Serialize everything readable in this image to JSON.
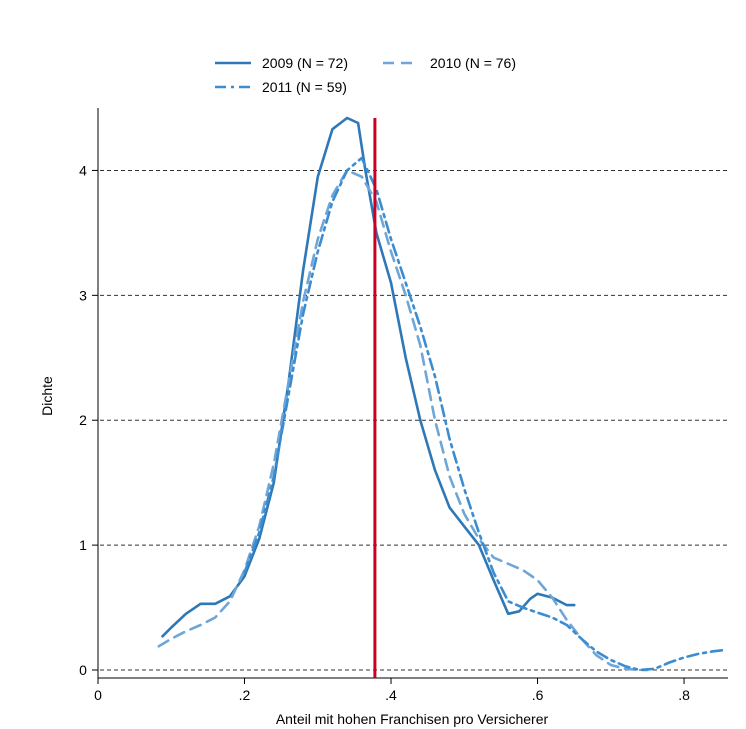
{
  "chart_data": {
    "type": "line",
    "title": "",
    "xlabel": "Anteil mit hohen Franchisen pro Versicherer",
    "ylabel": "Dichte",
    "xlim": [
      0,
      0.86
    ],
    "ylim": [
      0,
      4.5
    ],
    "x_ticks": [
      0,
      0.2,
      0.4,
      0.6,
      0.8
    ],
    "x_tick_labels": [
      "0",
      ".2",
      ".4",
      ".6",
      ".8"
    ],
    "y_ticks": [
      0,
      1,
      2,
      3,
      4
    ],
    "y_tick_labels": [
      "0",
      "1",
      "2",
      "3",
      "4"
    ],
    "grid": "horizontal dashed",
    "legend_position": "top",
    "vline": {
      "x": 0.378,
      "color": "#cc0022"
    },
    "series": [
      {
        "name": "2009 (N = 72)",
        "style": "solid",
        "color": "#2f78b7",
        "points": [
          [
            0.088,
            0.27
          ],
          [
            0.1,
            0.34
          ],
          [
            0.12,
            0.45
          ],
          [
            0.14,
            0.53
          ],
          [
            0.16,
            0.53
          ],
          [
            0.18,
            0.59
          ],
          [
            0.2,
            0.75
          ],
          [
            0.22,
            1.05
          ],
          [
            0.24,
            1.5
          ],
          [
            0.26,
            2.3
          ],
          [
            0.28,
            3.2
          ],
          [
            0.3,
            3.95
          ],
          [
            0.32,
            4.33
          ],
          [
            0.34,
            4.42
          ],
          [
            0.355,
            4.38
          ],
          [
            0.365,
            4.0
          ],
          [
            0.38,
            3.5
          ],
          [
            0.4,
            3.1
          ],
          [
            0.42,
            2.5
          ],
          [
            0.44,
            2.0
          ],
          [
            0.46,
            1.6
          ],
          [
            0.48,
            1.3
          ],
          [
            0.5,
            1.15
          ],
          [
            0.52,
            1.0
          ],
          [
            0.54,
            0.72
          ],
          [
            0.56,
            0.45
          ],
          [
            0.575,
            0.47
          ],
          [
            0.59,
            0.57
          ],
          [
            0.6,
            0.61
          ],
          [
            0.62,
            0.58
          ],
          [
            0.64,
            0.52
          ],
          [
            0.65,
            0.52
          ]
        ]
      },
      {
        "name": "2010 (N = 76)",
        "style": "dashed",
        "color": "#6ea6d8",
        "points": [
          [
            0.083,
            0.19
          ],
          [
            0.1,
            0.25
          ],
          [
            0.12,
            0.31
          ],
          [
            0.14,
            0.36
          ],
          [
            0.16,
            0.42
          ],
          [
            0.18,
            0.55
          ],
          [
            0.2,
            0.8
          ],
          [
            0.22,
            1.15
          ],
          [
            0.24,
            1.65
          ],
          [
            0.26,
            2.3
          ],
          [
            0.28,
            2.95
          ],
          [
            0.3,
            3.45
          ],
          [
            0.32,
            3.8
          ],
          [
            0.34,
            4.0
          ],
          [
            0.36,
            3.95
          ],
          [
            0.38,
            3.75
          ],
          [
            0.4,
            3.35
          ],
          [
            0.42,
            3.0
          ],
          [
            0.44,
            2.6
          ],
          [
            0.46,
            2.0
          ],
          [
            0.48,
            1.55
          ],
          [
            0.5,
            1.25
          ],
          [
            0.52,
            1.05
          ],
          [
            0.54,
            0.9
          ],
          [
            0.56,
            0.85
          ],
          [
            0.58,
            0.8
          ],
          [
            0.6,
            0.72
          ],
          [
            0.62,
            0.58
          ],
          [
            0.64,
            0.4
          ],
          [
            0.66,
            0.25
          ],
          [
            0.68,
            0.12
          ],
          [
            0.7,
            0.04
          ],
          [
            0.72,
            0.01
          ],
          [
            0.74,
            0.0
          ],
          [
            0.75,
            0.0
          ]
        ]
      },
      {
        "name": "2011 (N = 59)",
        "style": "dashdot",
        "color": "#3b8cd0",
        "points": [
          [
            0.2,
            0.78
          ],
          [
            0.22,
            1.1
          ],
          [
            0.24,
            1.55
          ],
          [
            0.26,
            2.2
          ],
          [
            0.28,
            2.85
          ],
          [
            0.3,
            3.35
          ],
          [
            0.32,
            3.75
          ],
          [
            0.34,
            4.0
          ],
          [
            0.36,
            4.1
          ],
          [
            0.38,
            3.85
          ],
          [
            0.4,
            3.45
          ],
          [
            0.42,
            3.1
          ],
          [
            0.44,
            2.75
          ],
          [
            0.46,
            2.35
          ],
          [
            0.48,
            1.85
          ],
          [
            0.5,
            1.45
          ],
          [
            0.52,
            1.1
          ],
          [
            0.54,
            0.78
          ],
          [
            0.56,
            0.55
          ],
          [
            0.58,
            0.5
          ],
          [
            0.6,
            0.46
          ],
          [
            0.62,
            0.42
          ],
          [
            0.64,
            0.36
          ],
          [
            0.66,
            0.25
          ],
          [
            0.68,
            0.15
          ],
          [
            0.7,
            0.08
          ],
          [
            0.72,
            0.03
          ],
          [
            0.74,
            0.0
          ],
          [
            0.76,
            0.01
          ],
          [
            0.78,
            0.06
          ],
          [
            0.8,
            0.1
          ],
          [
            0.82,
            0.13
          ],
          [
            0.84,
            0.15
          ],
          [
            0.855,
            0.16
          ]
        ]
      }
    ]
  }
}
